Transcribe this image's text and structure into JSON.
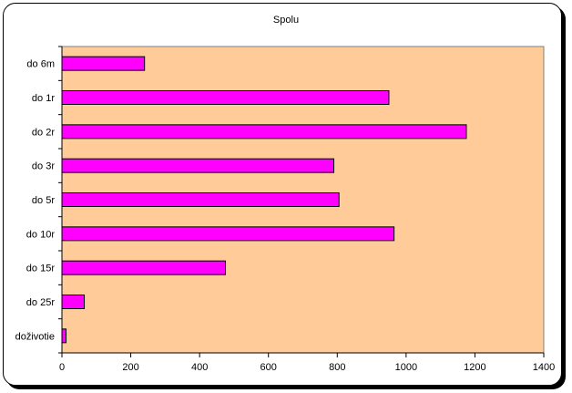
{
  "chart_data": {
    "type": "bar",
    "orientation": "horizontal",
    "title": "Spolu",
    "categories": [
      "do 6m",
      "do 1r",
      "do 2r",
      "do 3r",
      "do 5r",
      "do 10r",
      "do 15r",
      "do 25r",
      "doživotie"
    ],
    "values": [
      240,
      950,
      1175,
      790,
      805,
      965,
      475,
      65,
      12
    ],
    "xlabel": "",
    "ylabel": "",
    "xlim": [
      0,
      1400
    ],
    "xticks": [
      0,
      200,
      400,
      600,
      800,
      1000,
      1200,
      1400
    ],
    "grid": false,
    "legend": "none",
    "colors": {
      "bar": "#FF00FF",
      "plot_background": "#FFCC99"
    }
  }
}
